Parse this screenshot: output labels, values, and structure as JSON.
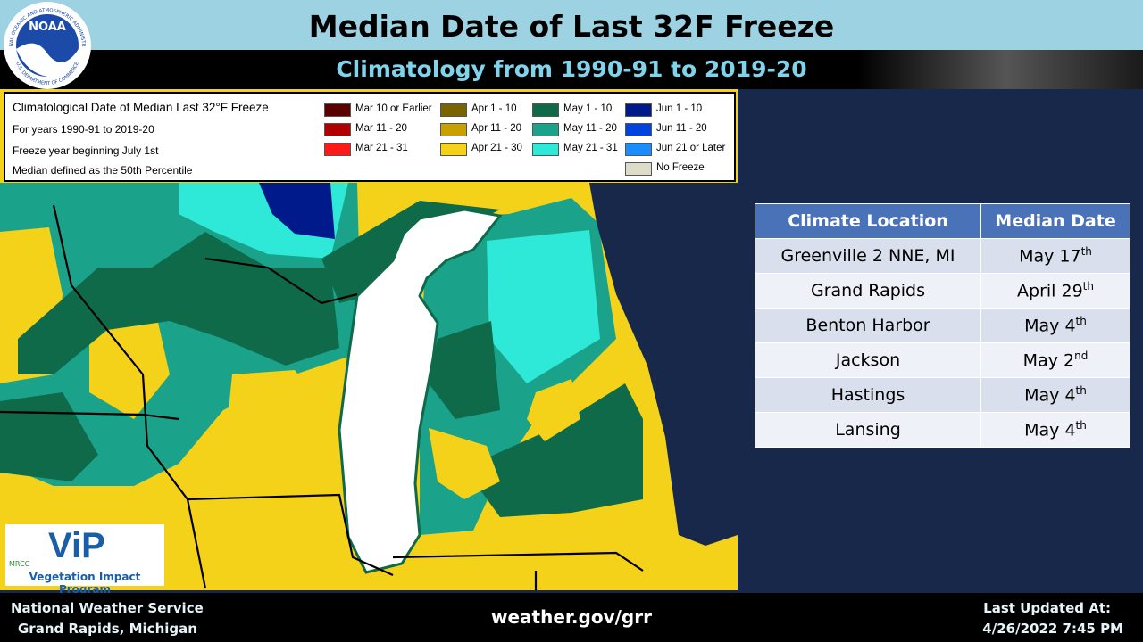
{
  "header": {
    "title": "Median Date of Last 32F Freeze",
    "subtitle": "Climatology from 1990-91 to 2019-20"
  },
  "logo": {
    "name": "NOAA",
    "ring_top": "NATIONAL OCEANIC AND ATMOSPHERIC ADMINISTRATION",
    "ring_bottom": "U.S. DEPARTMENT OF COMMERCE"
  },
  "map_legend": {
    "lines": [
      "Climatological Date of Median Last 32°F Freeze",
      "For years 1990-91 to 2019-20",
      "Freeze year beginning July 1st",
      "Median defined as the 50th Percentile"
    ],
    "items": [
      {
        "label": "Mar 10 or Earlier",
        "color": "#5a0000"
      },
      {
        "label": "Mar 11 - 20",
        "color": "#b00000"
      },
      {
        "label": "Mar 21 - 31",
        "color": "#ff1a1a"
      },
      {
        "label": "Apr 1 - 10",
        "color": "#7a6400"
      },
      {
        "label": "Apr 11 - 20",
        "color": "#c8a000"
      },
      {
        "label": "Apr 21 - 30",
        "color": "#f5d21a"
      },
      {
        "label": "May 1 - 10",
        "color": "#0f6a4a"
      },
      {
        "label": "May 11 - 20",
        "color": "#1aa38a"
      },
      {
        "label": "May 21 - 31",
        "color": "#2ee8d8"
      },
      {
        "label": "Jun 1 - 10",
        "color": "#001a8c"
      },
      {
        "label": "Jun 11 - 20",
        "color": "#0044e0"
      },
      {
        "label": "Jun 21 or Later",
        "color": "#1a8cff"
      },
      {
        "label": "No Freeze",
        "color": "#dcdcc8"
      }
    ]
  },
  "vip_logo": {
    "org": "MRCC",
    "name": "ViP",
    "program": "Vegetation Impact Program"
  },
  "table": {
    "header": [
      "Climate Location",
      "Median Date"
    ],
    "rows": [
      [
        "Greenville 2 NNE, MI",
        {
          "text": "May 17",
          "suffix": "th"
        }
      ],
      [
        "Grand Rapids",
        {
          "text": "April 29",
          "suffix": "th"
        }
      ],
      [
        "Benton Harbor",
        {
          "text": "May 4",
          "suffix": "th"
        }
      ],
      [
        "Jackson",
        {
          "text": "May 2",
          "suffix": "nd"
        }
      ],
      [
        "Hastings",
        {
          "text": "May 4",
          "suffix": "th"
        }
      ],
      [
        "Lansing",
        {
          "text": "May 4",
          "suffix": "th"
        }
      ]
    ]
  },
  "footer": {
    "office": "National Weather Service",
    "location": "Grand Rapids, Michigan",
    "url": "weather.gov/grr",
    "updated_label": "Last Updated At:",
    "updated": "4/26/2022 7:45 PM"
  }
}
